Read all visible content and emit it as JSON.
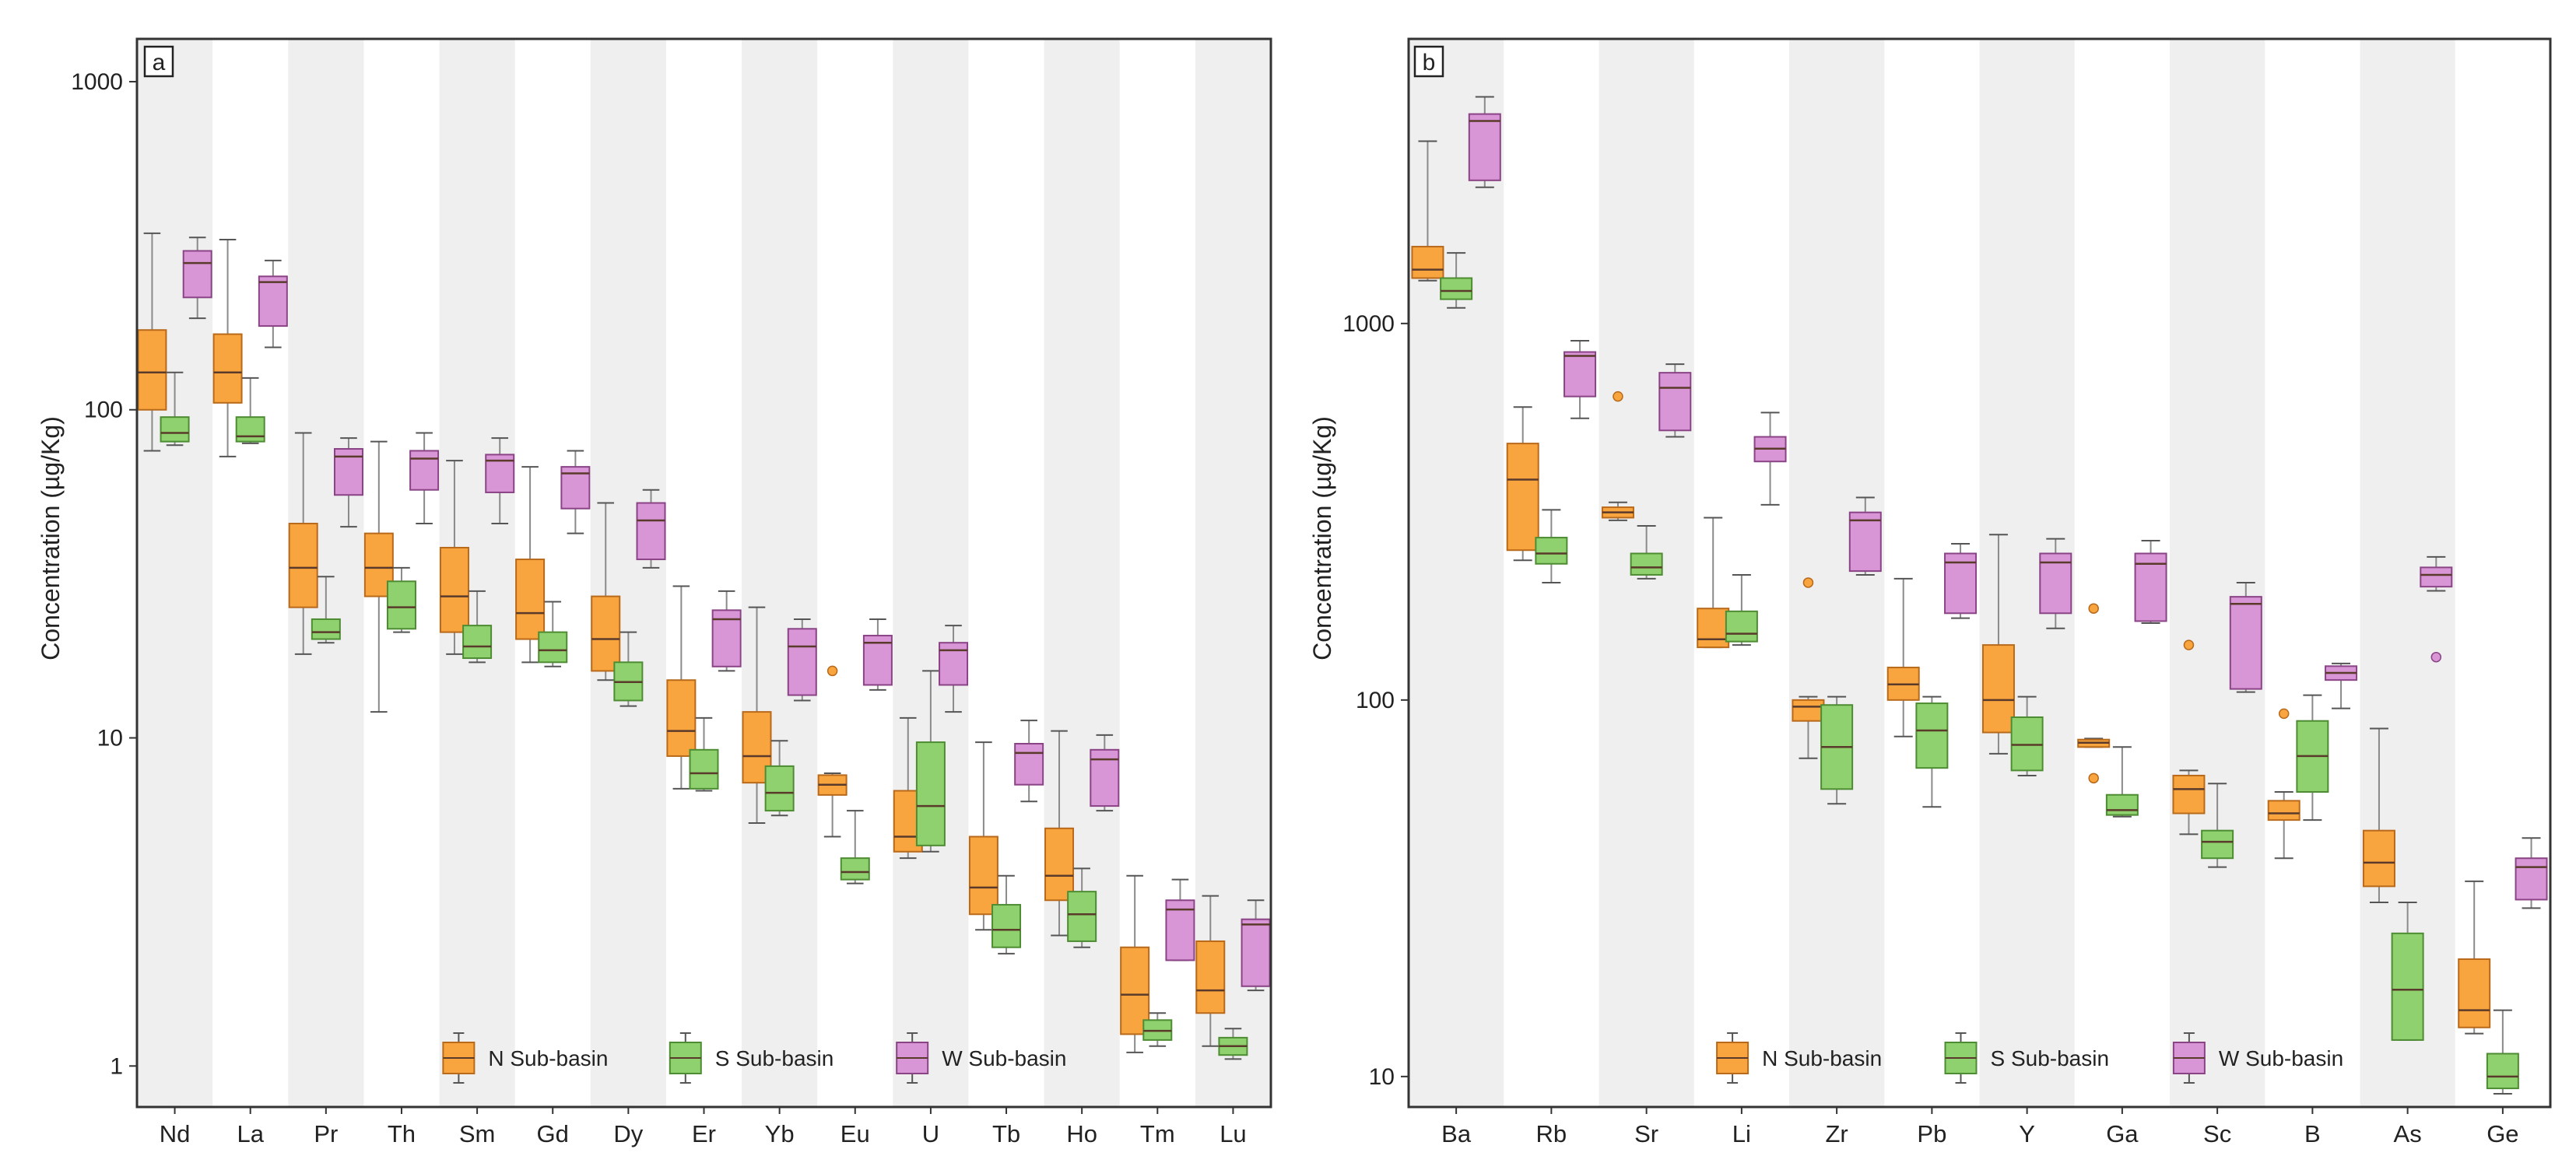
{
  "figure": {
    "ylabel": "Concentration (µg/Kg)",
    "legend": [
      "N Sub-basin",
      "S Sub-basin",
      "W Sub-basin"
    ]
  },
  "colors": {
    "N": "#f9a53f",
    "S": "#8fd16e",
    "W": "#d896d6",
    "N_stroke": "#b8691a",
    "S_stroke": "#4e8c33",
    "W_stroke": "#8a4486",
    "shade": "#efefef"
  },
  "chart_data": [
    {
      "type": "box",
      "panel": "a",
      "title": "a",
      "xlabel": "",
      "ylabel": "Concentration (µg/Kg)",
      "yscale": "log",
      "ylim": [
        0.75,
        1350
      ],
      "yticks": [
        {
          "value": 1,
          "label": "1"
        },
        {
          "value": 10,
          "label": "10"
        },
        {
          "value": 100,
          "label": "100"
        },
        {
          "value": 1000,
          "label": "1000"
        }
      ],
      "categories": [
        "Nd",
        "La",
        "Pr",
        "Th",
        "Sm",
        "Gd",
        "Dy",
        "Er",
        "Yb",
        "Eu",
        "U",
        "Tb",
        "Ho",
        "Tm",
        "Lu"
      ],
      "series": [
        {
          "name": "N Sub-basin",
          "key": "N",
          "boxes": [
            {
              "min": 75,
              "q1": 100,
              "median": 130,
              "q3": 175,
              "max": 345
            },
            {
              "min": 72,
              "q1": 105,
              "median": 130,
              "q3": 170,
              "max": 330
            },
            {
              "min": 18,
              "q1": 25,
              "median": 33,
              "q3": 45,
              "max": 85
            },
            {
              "min": 12,
              "q1": 27,
              "median": 33,
              "q3": 42,
              "max": 80
            },
            {
              "min": 18,
              "q1": 21,
              "median": 27,
              "q3": 38,
              "max": 70
            },
            {
              "min": 17,
              "q1": 20,
              "median": 24,
              "q3": 35,
              "max": 67
            },
            {
              "min": 15,
              "q1": 16,
              "median": 20,
              "q3": 27,
              "max": 52
            },
            {
              "min": 7,
              "q1": 8.8,
              "median": 10.5,
              "q3": 15,
              "max": 29
            },
            {
              "min": 5.5,
              "q1": 7.3,
              "median": 8.8,
              "q3": 12,
              "max": 25
            },
            {
              "min": 5,
              "q1": 6.7,
              "median": 7.2,
              "q3": 7.7,
              "max": 7.8,
              "outliers": [
                16
              ]
            },
            {
              "min": 4.3,
              "q1": 4.5,
              "median": 5,
              "q3": 6.9,
              "max": 11.5
            },
            {
              "min": 2.6,
              "q1": 2.9,
              "median": 3.5,
              "q3": 5,
              "max": 9.7
            },
            {
              "min": 2.5,
              "q1": 3.2,
              "median": 3.8,
              "q3": 5.3,
              "max": 10.5
            },
            {
              "min": 1.1,
              "q1": 1.25,
              "median": 1.65,
              "q3": 2.3,
              "max": 3.8
            },
            {
              "min": 1.15,
              "q1": 1.45,
              "median": 1.7,
              "q3": 2.4,
              "max": 3.3
            }
          ]
        },
        {
          "name": "S Sub-basin",
          "key": "S",
          "boxes": [
            {
              "min": 78,
              "q1": 80,
              "median": 85,
              "q3": 95,
              "max": 130
            },
            {
              "min": 79,
              "q1": 80,
              "median": 83,
              "q3": 95,
              "max": 125
            },
            {
              "min": 19.5,
              "q1": 20,
              "median": 21,
              "q3": 23,
              "max": 31
            },
            {
              "min": 21,
              "q1": 21.5,
              "median": 25,
              "q3": 30,
              "max": 33
            },
            {
              "min": 17,
              "q1": 17.5,
              "median": 19,
              "q3": 22,
              "max": 28
            },
            {
              "min": 16.5,
              "q1": 17,
              "median": 18.5,
              "q3": 21,
              "max": 26
            },
            {
              "min": 12.5,
              "q1": 13,
              "median": 14.8,
              "q3": 17,
              "max": 21
            },
            {
              "min": 6.9,
              "q1": 7,
              "median": 7.8,
              "q3": 9.2,
              "max": 11.5
            },
            {
              "min": 5.8,
              "q1": 6,
              "median": 6.8,
              "q3": 8.2,
              "max": 9.8
            },
            {
              "min": 3.6,
              "q1": 3.7,
              "median": 3.9,
              "q3": 4.3,
              "max": 6
            },
            {
              "min": 4.5,
              "q1": 4.7,
              "median": 6.2,
              "q3": 9.7,
              "max": 16
            },
            {
              "min": 2.2,
              "q1": 2.3,
              "median": 2.6,
              "q3": 3.1,
              "max": 3.8
            },
            {
              "min": 2.3,
              "q1": 2.4,
              "median": 2.9,
              "q3": 3.4,
              "max": 4
            },
            {
              "min": 1.15,
              "q1": 1.2,
              "median": 1.28,
              "q3": 1.38,
              "max": 1.45
            },
            {
              "min": 1.05,
              "q1": 1.08,
              "median": 1.15,
              "q3": 1.22,
              "max": 1.3
            }
          ]
        },
        {
          "name": "W Sub-basin",
          "key": "W",
          "boxes": [
            {
              "min": 190,
              "q1": 220,
              "median": 280,
              "q3": 305,
              "max": 335
            },
            {
              "min": 155,
              "q1": 180,
              "median": 245,
              "q3": 255,
              "max": 285
            },
            {
              "min": 44,
              "q1": 55,
              "median": 72,
              "q3": 76,
              "max": 82
            },
            {
              "min": 45,
              "q1": 57,
              "median": 71,
              "q3": 75,
              "max": 85
            },
            {
              "min": 45,
              "q1": 56,
              "median": 70,
              "q3": 73,
              "max": 82
            },
            {
              "min": 42,
              "q1": 50,
              "median": 64,
              "q3": 67,
              "max": 75
            },
            {
              "min": 33,
              "q1": 35,
              "median": 46,
              "q3": 52,
              "max": 57
            },
            {
              "min": 16,
              "q1": 16.5,
              "median": 23,
              "q3": 24.5,
              "max": 28
            },
            {
              "min": 13,
              "q1": 13.5,
              "median": 19,
              "q3": 21.5,
              "max": 23
            },
            {
              "min": 14,
              "q1": 14.5,
              "median": 19.5,
              "q3": 20.5,
              "max": 23
            },
            {
              "min": 12,
              "q1": 14.5,
              "median": 18.5,
              "q3": 19.5,
              "max": 22
            },
            {
              "min": 6.4,
              "q1": 7.2,
              "median": 9,
              "q3": 9.6,
              "max": 11.3
            },
            {
              "min": 6,
              "q1": 6.2,
              "median": 8.6,
              "q3": 9.2,
              "max": 10.2
            },
            {
              "min": 2.1,
              "q1": 2.1,
              "median": 3,
              "q3": 3.2,
              "max": 3.7
            },
            {
              "min": 1.7,
              "q1": 1.75,
              "median": 2.7,
              "q3": 2.8,
              "max": 3.2
            }
          ]
        }
      ]
    },
    {
      "type": "box",
      "panel": "b",
      "title": "b",
      "xlabel": "",
      "ylabel": "Concentration (µg/Kg)",
      "yscale": "log",
      "ylim": [
        8.3,
        5700
      ],
      "yticks": [
        {
          "value": 10,
          "label": "10"
        },
        {
          "value": 100,
          "label": "100"
        },
        {
          "value": 1000,
          "label": "1000"
        }
      ],
      "categories": [
        "Ba",
        "Rb",
        "Sr",
        "Li",
        "Zr",
        "Pb",
        "Y",
        "Ga",
        "Sc",
        "B",
        "As",
        "Ge"
      ],
      "series": [
        {
          "name": "N Sub-basin",
          "key": "N",
          "boxes": [
            {
              "min": 1300,
              "q1": 1320,
              "median": 1390,
              "q3": 1600,
              "max": 3050
            },
            {
              "min": 235,
              "q1": 250,
              "median": 385,
              "q3": 480,
              "max": 600
            },
            {
              "min": 300,
              "q1": 305,
              "median": 315,
              "q3": 325,
              "max": 335,
              "outliers": [
                640
              ]
            },
            {
              "min": 138,
              "q1": 138,
              "median": 145,
              "q3": 175,
              "max": 305
            },
            {
              "min": 70,
              "q1": 88,
              "median": 96,
              "q3": 100,
              "max": 102,
              "outliers": [
                205
              ]
            },
            {
              "min": 80,
              "q1": 100,
              "median": 110,
              "q3": 122,
              "max": 210
            },
            {
              "min": 72,
              "q1": 82,
              "median": 100,
              "q3": 140,
              "max": 275
            },
            {
              "min": 75,
              "q1": 75,
              "median": 77,
              "q3": 78.5,
              "max": 79,
              "outliers": [
                62,
                175
              ]
            },
            {
              "min": 44,
              "q1": 50,
              "median": 58,
              "q3": 63,
              "max": 65,
              "outliers": [
                140
              ]
            },
            {
              "min": 38,
              "q1": 48,
              "median": 50,
              "q3": 54,
              "max": 57,
              "outliers": [
                92
              ]
            },
            {
              "min": 29,
              "q1": 32,
              "median": 37,
              "q3": 45,
              "max": 84
            },
            {
              "min": 13,
              "q1": 13.5,
              "median": 15,
              "q3": 20.5,
              "max": 33
            }
          ]
        },
        {
          "name": "S Sub-basin",
          "key": "S",
          "boxes": [
            {
              "min": 1100,
              "q1": 1160,
              "median": 1220,
              "q3": 1320,
              "max": 1540
            },
            {
              "min": 205,
              "q1": 230,
              "median": 245,
              "q3": 270,
              "max": 320
            },
            {
              "min": 210,
              "q1": 215,
              "median": 225,
              "q3": 245,
              "max": 290
            },
            {
              "min": 140,
              "q1": 143,
              "median": 150,
              "q3": 172,
              "max": 215
            },
            {
              "min": 53,
              "q1": 58,
              "median": 75,
              "q3": 97,
              "max": 102
            },
            {
              "min": 52,
              "q1": 66,
              "median": 83,
              "q3": 98,
              "max": 102
            },
            {
              "min": 63,
              "q1": 65,
              "median": 76,
              "q3": 90,
              "max": 102
            },
            {
              "min": 49,
              "q1": 49.5,
              "median": 51,
              "q3": 56,
              "max": 75
            },
            {
              "min": 36,
              "q1": 38,
              "median": 42,
              "q3": 45,
              "max": 60
            },
            {
              "min": 48,
              "q1": 57,
              "median": 71,
              "q3": 88,
              "max": 103
            },
            {
              "min": 12.5,
              "q1": 12.5,
              "median": 17,
              "q3": 24,
              "max": 29
            },
            {
              "min": 9,
              "q1": 9.3,
              "median": 10,
              "q3": 11.5,
              "max": 15
            }
          ]
        },
        {
          "name": "W Sub-basin",
          "key": "W",
          "boxes": [
            {
              "min": 2300,
              "q1": 2400,
              "median": 3450,
              "q3": 3600,
              "max": 4000
            },
            {
              "min": 560,
              "q1": 640,
              "median": 820,
              "q3": 840,
              "max": 900
            },
            {
              "min": 500,
              "q1": 520,
              "median": 675,
              "q3": 740,
              "max": 780
            },
            {
              "min": 330,
              "q1": 430,
              "median": 465,
              "q3": 500,
              "max": 580
            },
            {
              "min": 215,
              "q1": 220,
              "median": 300,
              "q3": 315,
              "max": 345
            },
            {
              "min": 165,
              "q1": 170,
              "median": 232,
              "q3": 245,
              "max": 260
            },
            {
              "min": 155,
              "q1": 170,
              "median": 232,
              "q3": 245,
              "max": 268
            },
            {
              "min": 160,
              "q1": 162,
              "median": 230,
              "q3": 245,
              "max": 265
            },
            {
              "min": 105,
              "q1": 107,
              "median": 180,
              "q3": 188,
              "max": 205
            },
            {
              "min": 95,
              "q1": 113,
              "median": 118,
              "q3": 123,
              "max": 125
            },
            {
              "min": 195,
              "q1": 200,
              "median": 215,
              "q3": 225,
              "max": 240,
              "outliers": [
                130
              ]
            },
            {
              "min": 28,
              "q1": 29.5,
              "median": 36,
              "q3": 38,
              "max": 43
            }
          ]
        }
      ]
    }
  ]
}
